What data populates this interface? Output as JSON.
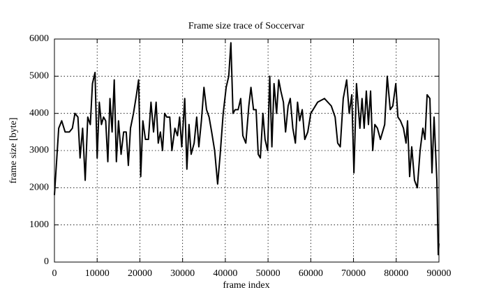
{
  "chart_data": {
    "type": "line",
    "title": "Frame size trace of Soccervar",
    "xlabel": "frame index",
    "ylabel": "frame size [byte]",
    "xlim": [
      0,
      90000
    ],
    "ylim": [
      0,
      6000
    ],
    "xticks": [
      0,
      10000,
      20000,
      30000,
      40000,
      50000,
      60000,
      70000,
      80000,
      90000
    ],
    "yticks": [
      0,
      1000,
      2000,
      3000,
      4000,
      5000,
      6000
    ],
    "grid": true,
    "series": [
      {
        "color": "#000000",
        "x": [
          0,
          1000,
          1700,
          2500,
          3500,
          4200,
          4800,
          5500,
          6000,
          6600,
          7200,
          7800,
          8400,
          8900,
          9500,
          10000,
          10500,
          11000,
          11500,
          12000,
          12500,
          13000,
          13500,
          14000,
          14500,
          15000,
          15600,
          16200,
          16800,
          17300,
          17800,
          18500,
          19200,
          19700,
          20200,
          20700,
          21300,
          22000,
          22600,
          23200,
          23800,
          24300,
          24800,
          25300,
          25800,
          26300,
          27000,
          27500,
          28200,
          28800,
          29300,
          29800,
          30500,
          31000,
          31500,
          32000,
          32700,
          33300,
          33800,
          34400,
          35000,
          35600,
          36200,
          36800,
          37500,
          38200,
          38800,
          39500,
          40200,
          40800,
          41300,
          41800,
          42300,
          43000,
          43600,
          44100,
          44800,
          45500,
          46000,
          46600,
          47200,
          47700,
          48200,
          48800,
          49300,
          49900,
          50400,
          50900,
          51400,
          52000,
          52500,
          53000,
          53600,
          54100,
          54700,
          55200,
          55800,
          56400,
          56900,
          57400,
          58000,
          58600,
          59300,
          60000,
          61600,
          63200,
          64800,
          65700,
          66300,
          66900,
          67600,
          68400,
          69000,
          69600,
          70100,
          70700,
          71500,
          72000,
          72500,
          73000,
          73500,
          74000,
          74500,
          75000,
          75600,
          76300,
          77300,
          77900,
          78600,
          79200,
          79900,
          80400,
          81000,
          81700,
          82300,
          82650,
          83140,
          83630,
          84280,
          84940,
          85590,
          86240,
          86730,
          87230,
          87880,
          88370,
          88860,
          89510,
          89840,
          90000
        ],
        "values": [
          1800,
          3600,
          3800,
          3500,
          3500,
          3600,
          4000,
          3900,
          2800,
          3600,
          2200,
          3900,
          3700,
          4800,
          5100,
          2800,
          4300,
          3700,
          3900,
          3800,
          2700,
          4400,
          3500,
          4900,
          2700,
          3800,
          2900,
          3500,
          3500,
          2600,
          3600,
          4000,
          4500,
          4900,
          2300,
          3800,
          3300,
          3300,
          4300,
          3500,
          4300,
          3200,
          3500,
          3000,
          4000,
          3900,
          3900,
          3000,
          3600,
          3400,
          3900,
          3100,
          4400,
          2500,
          3700,
          2900,
          3200,
          3900,
          3100,
          3800,
          4700,
          4100,
          3900,
          3500,
          3000,
          2100,
          2900,
          4000,
          4700,
          5000,
          5900,
          4000,
          4100,
          4100,
          4400,
          3400,
          3200,
          4200,
          4700,
          4100,
          4100,
          2900,
          2800,
          4000,
          3300,
          3000,
          5000,
          3100,
          4800,
          4000,
          4900,
          4600,
          4300,
          3500,
          4200,
          4400,
          3600,
          3200,
          4300,
          3800,
          4100,
          3300,
          3500,
          4000,
          4300,
          4400,
          4200,
          3900,
          3200,
          3100,
          4400,
          4900,
          4000,
          4500,
          2400,
          4800,
          3600,
          4400,
          3600,
          4600,
          3700,
          4600,
          3000,
          3700,
          3600,
          3300,
          3700,
          5000,
          4100,
          4200,
          4800,
          3900,
          3800,
          3600,
          3200,
          3800,
          2300,
          3100,
          2200,
          2000,
          3000,
          3600,
          3300,
          4500,
          4400,
          2400,
          3900,
          2200,
          200,
          500
        ]
      }
    ]
  }
}
